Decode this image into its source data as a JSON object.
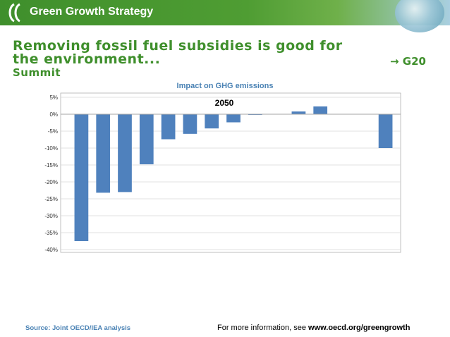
{
  "header": {
    "banner_title": "Green Growth Strategy"
  },
  "slide": {
    "title_line1": "Removing fossil fuel subsidies is good for",
    "title_line2": "the environment...",
    "title_line3": "Summit",
    "arrow_label": "→ G20"
  },
  "chart_title": "Impact on GHG emissions",
  "footer": {
    "source": "Source: Joint OECD/IEA analysis",
    "info_prefix": "For more information, see ",
    "info_link": "www.oecd.org/greengrowth"
  },
  "colors": {
    "accent_green": "#3f8f2c",
    "bar": "#4f81bd",
    "chart_title": "#4a82b4"
  },
  "chart_data": {
    "type": "bar",
    "annotation": "2050",
    "ylim": [
      -40,
      5
    ],
    "yticks": [
      5,
      0,
      -5,
      -10,
      -15,
      -20,
      -25,
      -30,
      -35,
      -40
    ],
    "ytick_labels": [
      "5%",
      "0%",
      "-5%",
      "-10%",
      "-15%",
      "-20%",
      "-25%",
      "-30%",
      "-35%",
      "-40%"
    ],
    "grid": true,
    "ylabel": "",
    "categories": [
      "",
      "",
      "",
      "",
      "",
      "",
      "",
      "",
      "",
      "",
      "",
      "",
      "",
      "",
      ""
    ],
    "values": [
      -37.5,
      -23.2,
      -23.0,
      -14.8,
      -7.4,
      -5.8,
      -4.2,
      -2.4,
      -0.2,
      0,
      0.8,
      2.3,
      0,
      0,
      -10.0
    ]
  }
}
